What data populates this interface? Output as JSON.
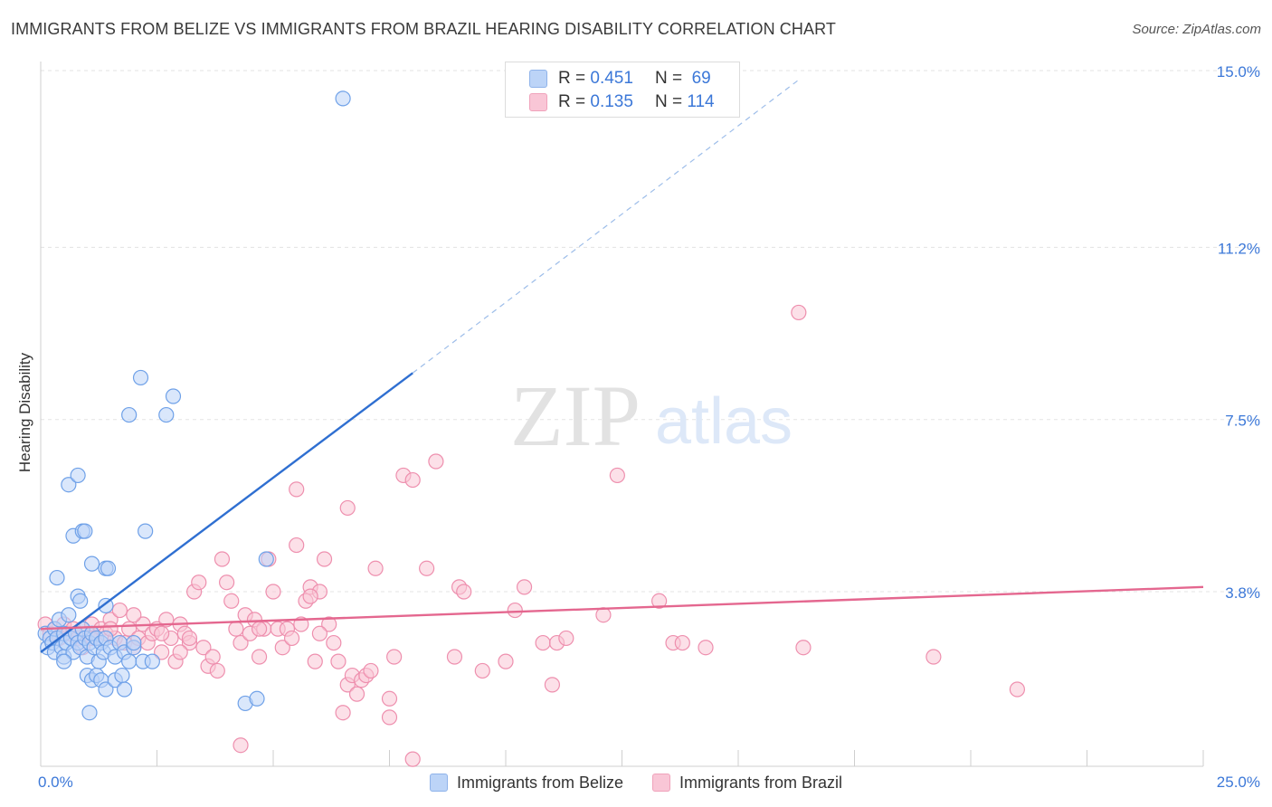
{
  "title": "IMMIGRANTS FROM BELIZE VS IMMIGRANTS FROM BRAZIL HEARING DISABILITY CORRELATION CHART",
  "source": "Source: ZipAtlas.com",
  "watermark": {
    "zip": "ZIP",
    "atlas": "atlas"
  },
  "stats": {
    "belize": {
      "r_label": "R =",
      "r_value": "0.451",
      "n_label": "N =",
      "n_value": "69"
    },
    "brazil": {
      "r_label": "R =",
      "r_value": "0.135",
      "n_label": "N =",
      "n_value": "114"
    }
  },
  "colors": {
    "belize": "#6fa1e8",
    "belize_fill": "#bcd4f7",
    "belize_line": "#2f6fd1",
    "brazil": "#ee8fae",
    "brazil_fill": "#f9c6d6",
    "brazil_line": "#e4678f",
    "axis_text": "#3c78d8"
  },
  "chart_data": {
    "type": "scatter",
    "title": "IMMIGRANTS FROM BELIZE VS IMMIGRANTS FROM BRAZIL HEARING DISABILITY CORRELATION CHART",
    "xlabel": "",
    "ylabel": "Hearing Disability",
    "xlim": [
      0,
      25
    ],
    "ylim": [
      0,
      15.5
    ],
    "x_tick_labels": [
      "0.0%",
      "25.0%"
    ],
    "y_ticks": [
      3.8,
      7.5,
      11.2,
      15.0
    ],
    "y_tick_labels": [
      "3.8%",
      "7.5%",
      "11.2%",
      "15.0%"
    ],
    "legend": [
      "Immigrants from Belize",
      "Immigrants from Brazil"
    ],
    "series": [
      {
        "name": "Immigrants from Belize",
        "r": 0.451,
        "n": 69,
        "trend": {
          "x0": 0,
          "y0": 2.5,
          "x1": 8.0,
          "y1": 8.5,
          "dash_to_x": 16.3,
          "dash_to_y": 14.8
        },
        "points": [
          [
            0.1,
            2.9
          ],
          [
            0.15,
            2.6
          ],
          [
            0.2,
            2.8
          ],
          [
            0.25,
            2.7
          ],
          [
            0.3,
            3.0
          ],
          [
            0.3,
            2.5
          ],
          [
            0.35,
            2.8
          ],
          [
            0.4,
            3.2
          ],
          [
            0.45,
            2.6
          ],
          [
            0.5,
            2.9
          ],
          [
            0.5,
            2.4
          ],
          [
            0.55,
            2.7
          ],
          [
            0.6,
            3.3
          ],
          [
            0.65,
            2.8
          ],
          [
            0.7,
            2.5
          ],
          [
            0.75,
            2.9
          ],
          [
            0.8,
            2.7
          ],
          [
            0.85,
            2.6
          ],
          [
            0.9,
            3.0
          ],
          [
            0.95,
            2.8
          ],
          [
            1.0,
            2.4
          ],
          [
            1.05,
            2.7
          ],
          [
            1.1,
            2.9
          ],
          [
            1.15,
            2.6
          ],
          [
            1.2,
            2.8
          ],
          [
            1.25,
            2.3
          ],
          [
            1.3,
            2.7
          ],
          [
            1.35,
            2.5
          ],
          [
            1.4,
            2.8
          ],
          [
            1.5,
            2.6
          ],
          [
            1.6,
            2.4
          ],
          [
            1.7,
            2.7
          ],
          [
            1.8,
            2.5
          ],
          [
            1.9,
            2.3
          ],
          [
            2.0,
            2.6
          ],
          [
            0.35,
            4.1
          ],
          [
            0.6,
            6.1
          ],
          [
            0.8,
            6.3
          ],
          [
            0.7,
            5.0
          ],
          [
            0.9,
            5.1
          ],
          [
            0.95,
            5.1
          ],
          [
            1.1,
            4.4
          ],
          [
            1.4,
            4.3
          ],
          [
            1.45,
            4.3
          ],
          [
            2.25,
            5.1
          ],
          [
            2.15,
            8.4
          ],
          [
            1.9,
            7.6
          ],
          [
            2.7,
            7.6
          ],
          [
            2.85,
            8.0
          ],
          [
            0.8,
            3.7
          ],
          [
            0.85,
            3.6
          ],
          [
            1.4,
            3.5
          ],
          [
            0.5,
            2.3
          ],
          [
            1.0,
            2.0
          ],
          [
            1.1,
            1.9
          ],
          [
            1.2,
            2.0
          ],
          [
            1.3,
            1.9
          ],
          [
            1.4,
            1.7
          ],
          [
            1.6,
            1.9
          ],
          [
            1.75,
            2.0
          ],
          [
            1.8,
            1.7
          ],
          [
            2.2,
            2.3
          ],
          [
            2.0,
            2.7
          ],
          [
            2.4,
            2.3
          ],
          [
            1.05,
            1.2
          ],
          [
            4.4,
            1.4
          ],
          [
            4.65,
            1.5
          ],
          [
            4.85,
            4.5
          ],
          [
            6.5,
            14.4
          ]
        ]
      },
      {
        "name": "Immigrants from Brazil",
        "r": 0.135,
        "n": 114,
        "trend": {
          "x0": 0,
          "y0": 3.0,
          "x1": 25,
          "y1": 3.9
        },
        "points": [
          [
            0.1,
            3.1
          ],
          [
            0.2,
            2.9
          ],
          [
            0.3,
            3.0
          ],
          [
            0.4,
            2.8
          ],
          [
            0.5,
            3.1
          ],
          [
            0.6,
            2.9
          ],
          [
            0.7,
            3.0
          ],
          [
            0.8,
            2.8
          ],
          [
            0.9,
            3.0
          ],
          [
            1.0,
            2.9
          ],
          [
            1.1,
            3.1
          ],
          [
            1.2,
            2.8
          ],
          [
            1.3,
            3.0
          ],
          [
            1.4,
            2.9
          ],
          [
            1.5,
            3.2
          ],
          [
            1.6,
            2.8
          ],
          [
            1.7,
            3.4
          ],
          [
            1.8,
            2.7
          ],
          [
            1.9,
            3.0
          ],
          [
            2.0,
            2.6
          ],
          [
            2.1,
            2.8
          ],
          [
            2.2,
            3.1
          ],
          [
            2.3,
            2.7
          ],
          [
            2.4,
            2.9
          ],
          [
            2.5,
            3.0
          ],
          [
            2.6,
            2.5
          ],
          [
            2.7,
            3.2
          ],
          [
            2.8,
            2.8
          ],
          [
            2.9,
            2.3
          ],
          [
            3.0,
            3.1
          ],
          [
            3.1,
            2.9
          ],
          [
            3.2,
            2.7
          ],
          [
            3.3,
            3.8
          ],
          [
            3.4,
            4.0
          ],
          [
            3.5,
            2.6
          ],
          [
            3.6,
            2.2
          ],
          [
            3.7,
            2.4
          ],
          [
            3.8,
            2.1
          ],
          [
            3.9,
            4.5
          ],
          [
            4.0,
            4.0
          ],
          [
            4.1,
            3.6
          ],
          [
            4.2,
            3.0
          ],
          [
            4.3,
            2.7
          ],
          [
            4.4,
            3.3
          ],
          [
            4.5,
            2.9
          ],
          [
            4.6,
            3.2
          ],
          [
            4.7,
            2.4
          ],
          [
            4.8,
            3.0
          ],
          [
            4.9,
            4.5
          ],
          [
            5.0,
            3.8
          ],
          [
            5.1,
            3.0
          ],
          [
            5.2,
            2.6
          ],
          [
            5.3,
            3.0
          ],
          [
            5.4,
            2.8
          ],
          [
            5.5,
            4.8
          ],
          [
            5.6,
            3.1
          ],
          [
            5.7,
            3.6
          ],
          [
            5.8,
            3.9
          ],
          [
            5.9,
            2.3
          ],
          [
            6.0,
            3.8
          ],
          [
            6.1,
            4.5
          ],
          [
            6.2,
            3.1
          ],
          [
            6.3,
            2.7
          ],
          [
            6.4,
            2.3
          ],
          [
            6.5,
            1.2
          ],
          [
            6.6,
            1.8
          ],
          [
            6.7,
            2.0
          ],
          [
            6.8,
            1.6
          ],
          [
            6.9,
            1.9
          ],
          [
            7.0,
            2.0
          ],
          [
            7.1,
            2.1
          ],
          [
            7.2,
            4.3
          ],
          [
            7.5,
            1.1
          ],
          [
            7.6,
            2.4
          ],
          [
            7.8,
            6.3
          ],
          [
            8.0,
            6.2
          ],
          [
            8.3,
            4.3
          ],
          [
            8.5,
            6.6
          ],
          [
            8.9,
            2.4
          ],
          [
            9.0,
            3.9
          ],
          [
            9.1,
            3.8
          ],
          [
            9.5,
            2.1
          ],
          [
            10.0,
            2.3
          ],
          [
            10.2,
            3.4
          ],
          [
            10.4,
            3.9
          ],
          [
            10.8,
            2.7
          ],
          [
            11.0,
            1.8
          ],
          [
            11.1,
            2.7
          ],
          [
            11.3,
            2.8
          ],
          [
            12.1,
            3.3
          ],
          [
            12.4,
            6.3
          ],
          [
            13.3,
            3.6
          ],
          [
            13.6,
            2.7
          ],
          [
            13.8,
            2.7
          ],
          [
            14.3,
            2.6
          ],
          [
            16.3,
            9.8
          ],
          [
            16.4,
            2.6
          ],
          [
            19.2,
            2.4
          ],
          [
            21.0,
            1.7
          ],
          [
            4.3,
            0.5
          ],
          [
            5.5,
            6.0
          ],
          [
            6.6,
            5.6
          ],
          [
            8.0,
            0.2
          ],
          [
            7.5,
            1.5
          ],
          [
            2.6,
            2.9
          ],
          [
            3.2,
            2.8
          ],
          [
            1.5,
            3.0
          ],
          [
            2.0,
            3.3
          ],
          [
            0.9,
            2.6
          ],
          [
            1.1,
            2.8
          ],
          [
            3.0,
            2.5
          ],
          [
            4.7,
            3.0
          ],
          [
            5.8,
            3.7
          ],
          [
            6.0,
            2.9
          ]
        ]
      }
    ]
  },
  "legend_bottom": {
    "belize": "Immigrants from Belize",
    "brazil": "Immigrants from Brazil"
  }
}
